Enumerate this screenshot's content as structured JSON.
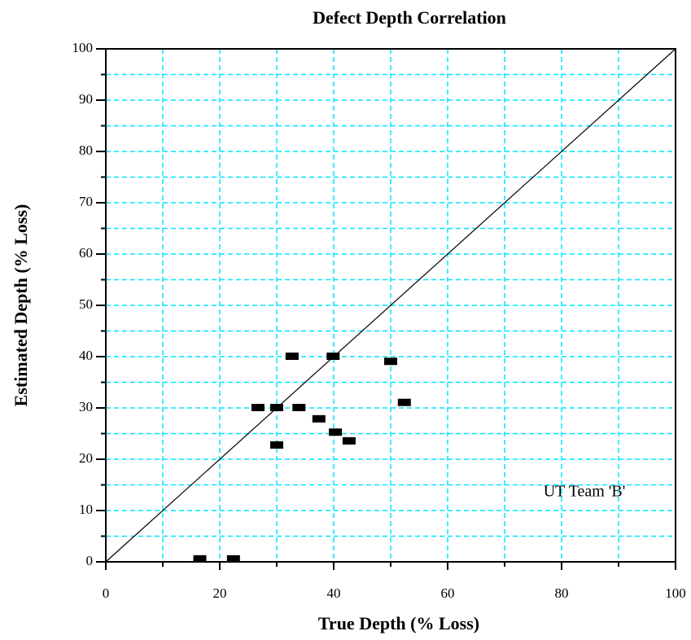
{
  "chart_data": {
    "type": "scatter",
    "title": "Defect Depth Correlation",
    "x_label": "True Depth (% Loss)",
    "y_label": "Estimated Depth (% Loss)",
    "annotation": "UT Team 'B'",
    "series": [
      {
        "color": "#000000",
        "x": [
          16.5,
          22.4,
          26.7,
          30,
          30,
          32.7,
          33.9,
          37.4,
          39.9,
          40.3,
          42.7,
          50,
          52.4
        ],
        "values": [
          0.5,
          0.5,
          30,
          30,
          22.7,
          40,
          30,
          27.8,
          40,
          25.2,
          23.5,
          39,
          31
        ]
      }
    ],
    "xlim": [
      0,
      100
    ],
    "ylim": [
      0,
      100
    ],
    "xticks": [
      0,
      20,
      40,
      60,
      80,
      100
    ],
    "yticks": [
      0,
      10,
      20,
      30,
      40,
      50,
      60,
      70,
      80,
      90,
      100
    ],
    "grid": true,
    "grid_color": "#00e5ff"
  }
}
